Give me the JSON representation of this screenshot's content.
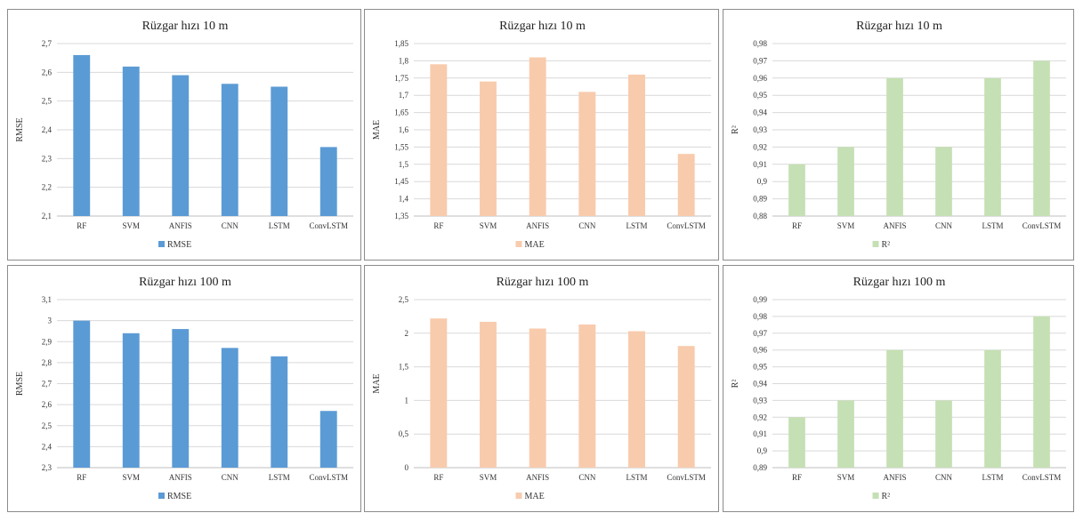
{
  "chart_data": [
    {
      "type": "bar",
      "title": "Rüzgar hızı 10 m",
      "ylabel": "RMSE",
      "ylim": [
        2.1,
        2.7
      ],
      "yticks": [
        "2,1",
        "2,2",
        "2,3",
        "2,4",
        "2,5",
        "2,6",
        "2,7"
      ],
      "categories": [
        "RF",
        "SVM",
        "ANFIS",
        "CNN",
        "LSTM",
        "ConvLSTM"
      ],
      "series": [
        {
          "name": "RMSE",
          "values": [
            2.66,
            2.62,
            2.59,
            2.56,
            2.55,
            2.34
          ]
        }
      ],
      "color": "#5b9bd5",
      "grid": true,
      "legend": "bottom"
    },
    {
      "type": "bar",
      "title": "Rüzgar hızı 10 m",
      "ylabel": "MAE",
      "ylim": [
        1.35,
        1.85
      ],
      "yticks": [
        "1,35",
        "1,4",
        "1,45",
        "1,5",
        "1,55",
        "1,6",
        "1,65",
        "1,7",
        "1,75",
        "1,8",
        "1,85"
      ],
      "categories": [
        "RF",
        "SVM",
        "ANFIS",
        "CNN",
        "LSTM",
        "ConvLSTM"
      ],
      "series": [
        {
          "name": "MAE",
          "values": [
            1.79,
            1.74,
            1.81,
            1.71,
            1.76,
            1.53
          ]
        }
      ],
      "color": "#f8cbad",
      "grid": true,
      "legend": "bottom"
    },
    {
      "type": "bar",
      "title": "Rüzgar hızı 10 m",
      "ylabel": "R²",
      "ylim": [
        0.88,
        0.98
      ],
      "yticks": [
        "0,88",
        "0,89",
        "0,9",
        "0,91",
        "0,92",
        "0,93",
        "0,94",
        "0,95",
        "0,96",
        "0,97",
        "0,98"
      ],
      "categories": [
        "RF",
        "SVM",
        "ANFIS",
        "CNN",
        "LSTM",
        "ConvLSTM"
      ],
      "series": [
        {
          "name": "R²",
          "values": [
            0.91,
            0.92,
            0.96,
            0.92,
            0.96,
            0.97
          ]
        }
      ],
      "color": "#c5e0b4",
      "grid": true,
      "legend": "bottom"
    },
    {
      "type": "bar",
      "title": "Rüzgar hızı 100 m",
      "ylabel": "RMSE",
      "ylim": [
        2.3,
        3.1
      ],
      "yticks": [
        "2,3",
        "2,4",
        "2,5",
        "2,6",
        "2,7",
        "2,8",
        "2,9",
        "3",
        "3,1"
      ],
      "categories": [
        "RF",
        "SVM",
        "ANFIS",
        "CNN",
        "LSTM",
        "ConvLSTM"
      ],
      "series": [
        {
          "name": "RMSE",
          "values": [
            3.0,
            2.94,
            2.96,
            2.87,
            2.83,
            2.57
          ]
        }
      ],
      "color": "#5b9bd5",
      "grid": true,
      "legend": "bottom"
    },
    {
      "type": "bar",
      "title": "Rüzgar hızı 100 m",
      "ylabel": "MAE",
      "ylim": [
        0,
        2.5
      ],
      "yticks": [
        "0",
        "0,5",
        "1",
        "1,5",
        "2",
        "2,5"
      ],
      "categories": [
        "RF",
        "SVM",
        "ANFIS",
        "CNN",
        "LSTM",
        "ConvLSTM"
      ],
      "series": [
        {
          "name": "MAE",
          "values": [
            2.22,
            2.17,
            2.07,
            2.13,
            2.03,
            1.81
          ]
        }
      ],
      "color": "#f8cbad",
      "grid": true,
      "legend": "bottom"
    },
    {
      "type": "bar",
      "title": "Rüzgar hızı 100 m",
      "ylabel": "R²",
      "ylim": [
        0.89,
        0.99
      ],
      "yticks": [
        "0,89",
        "0,9",
        "0,91",
        "0,92",
        "0,93",
        "0,94",
        "0,95",
        "0,96",
        "0,97",
        "0,98",
        "0,99"
      ],
      "categories": [
        "RF",
        "SVM",
        "ANFIS",
        "CNN",
        "LSTM",
        "ConvLSTM"
      ],
      "series": [
        {
          "name": "R²",
          "values": [
            0.92,
            0.93,
            0.96,
            0.93,
            0.96,
            0.98
          ]
        }
      ],
      "color": "#c5e0b4",
      "grid": true,
      "legend": "bottom"
    }
  ]
}
